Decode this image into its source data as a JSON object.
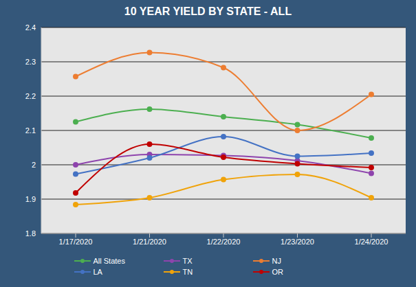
{
  "chart_data": {
    "type": "line",
    "title": "10 YEAR YIELD BY STATE - ALL",
    "categories": [
      "1/17/2020",
      "1/21/2020",
      "1/22/2020",
      "1/23/2020",
      "1/24/2020"
    ],
    "series": [
      {
        "name": "All States",
        "color": "#4caf50",
        "values": [
          2.125,
          2.162,
          2.14,
          2.117,
          2.078
        ]
      },
      {
        "name": "TX",
        "color": "#8e44ad",
        "values": [
          2.0,
          2.03,
          2.027,
          2.012,
          1.975
        ]
      },
      {
        "name": "NJ",
        "color": "#ed7d31",
        "values": [
          2.257,
          2.327,
          2.283,
          2.1,
          2.205
        ]
      },
      {
        "name": "LA",
        "color": "#4472c4",
        "values": [
          1.973,
          2.02,
          2.082,
          2.025,
          2.034
        ]
      },
      {
        "name": "TN",
        "color": "#f0a30a",
        "values": [
          1.884,
          1.904,
          1.957,
          1.972,
          1.904
        ]
      },
      {
        "name": "OR",
        "color": "#c00000",
        "values": [
          1.918,
          2.06,
          2.022,
          2.003,
          1.992
        ]
      }
    ],
    "ylim": [
      1.8,
      2.4
    ],
    "yticks": [
      1.8,
      1.9,
      2,
      2.1,
      2.2,
      2.3,
      2.4
    ],
    "grid": true,
    "legend": "bottom",
    "marker": "circle",
    "line_style": "smooth"
  }
}
